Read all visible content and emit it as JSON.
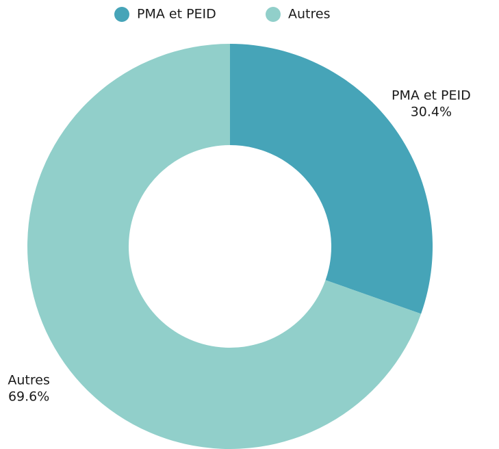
{
  "chart_data": {
    "type": "donut",
    "categories": [
      "PMA et PEID",
      "Autres"
    ],
    "values": [
      30.4,
      69.6
    ],
    "value_labels": [
      "30.4%",
      "69.6%"
    ],
    "colors": [
      "#46a4b8",
      "#91cfca"
    ],
    "legend": "top"
  }
}
